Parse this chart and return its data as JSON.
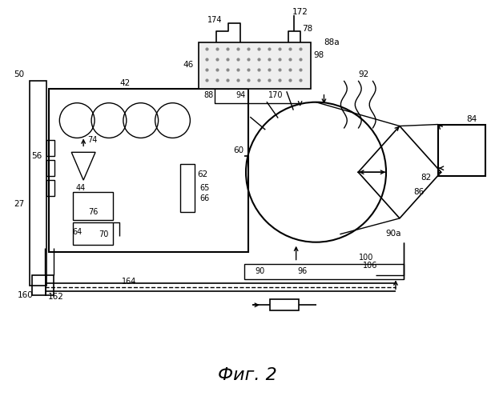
{
  "title": "Фиг. 2",
  "background_color": "#ffffff",
  "line_color": "#000000",
  "title_fontsize": 16
}
